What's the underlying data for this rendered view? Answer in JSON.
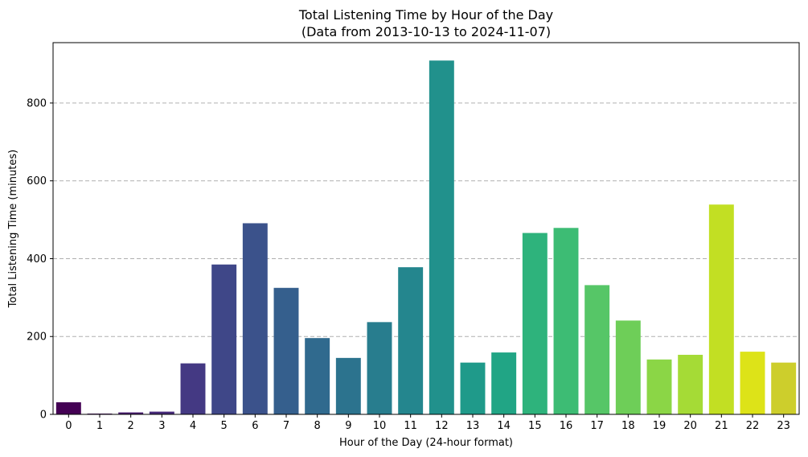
{
  "chart_data": {
    "type": "bar",
    "title": "Total Listening Time by Hour of the Day",
    "subtitle": "(Data from 2013-10-13 to 2024-11-07)",
    "xlabel": "Hour of the Day (24-hour format)",
    "ylabel": "Total Listening Time (minutes)",
    "categories": [
      "0",
      "1",
      "2",
      "3",
      "4",
      "5",
      "6",
      "7",
      "8",
      "9",
      "10",
      "11",
      "12",
      "13",
      "14",
      "15",
      "16",
      "17",
      "18",
      "19",
      "20",
      "21",
      "22",
      "23"
    ],
    "values": [
      31,
      2,
      5,
      7,
      131,
      385,
      491,
      325,
      196,
      145,
      237,
      378,
      909,
      133,
      159,
      466,
      479,
      332,
      241,
      141,
      153,
      539,
      161,
      133
    ],
    "ylim": [
      0,
      955
    ],
    "yticks": [
      0,
      200,
      400,
      600,
      800
    ],
    "grid": "y-dashed",
    "colors": [
      "#440154",
      "#470f62",
      "#481c6e",
      "#472a7a",
      "#443983",
      "#3f4788",
      "#3b528b",
      "#355f8d",
      "#306a8e",
      "#2c738e",
      "#287d8e",
      "#24868e",
      "#21918c",
      "#1f9a8a",
      "#21a585",
      "#2eb37c",
      "#3dbc74",
      "#56c667",
      "#6ece58",
      "#8bd646",
      "#a5db36",
      "#c2df23",
      "#dde318",
      "#cdce2c"
    ]
  }
}
